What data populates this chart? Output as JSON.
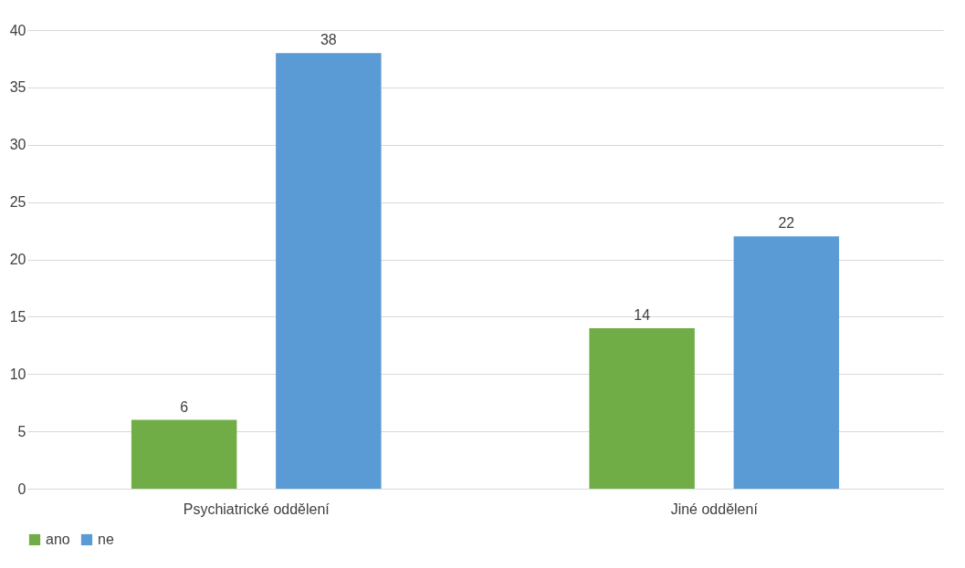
{
  "chart_data": {
    "type": "bar",
    "categories": [
      "Psychiatrické oddělení",
      "Jiné oddělení"
    ],
    "series": [
      {
        "name": "ano",
        "color": "#70ad47",
        "values": [
          6,
          14
        ]
      },
      {
        "name": "ne",
        "color": "#5b9bd5",
        "values": [
          38,
          22
        ]
      }
    ],
    "ylim": [
      0,
      40
    ],
    "yticks": [
      0,
      5,
      10,
      15,
      20,
      25,
      30,
      35,
      40
    ],
    "grid": "y",
    "legend": "bottom",
    "data_labels": true
  }
}
